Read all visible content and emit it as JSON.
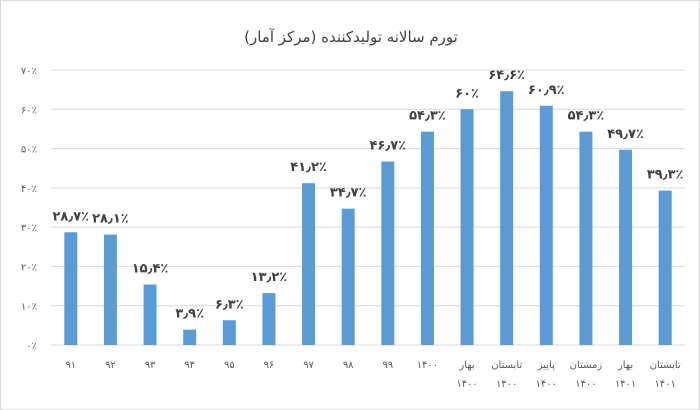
{
  "chart_data": {
    "type": "bar",
    "title": "تورم سالانه تولیدکننده (مرکز آمار)",
    "categories": [
      [
        "۹۱"
      ],
      [
        "۹۲"
      ],
      [
        "۹۳"
      ],
      [
        "۹۴"
      ],
      [
        "۹۵"
      ],
      [
        "۹۶"
      ],
      [
        "۹۷"
      ],
      [
        "۹۸"
      ],
      [
        "۹۹"
      ],
      [
        "۱۴۰۰"
      ],
      [
        "بهار",
        "۱۴۰۰"
      ],
      [
        "تابستان",
        "۱۴۰۰"
      ],
      [
        "پاییز",
        "۱۴۰۰"
      ],
      [
        "زمستان",
        "۱۴۰۰"
      ],
      [
        "بهار",
        "۱۴۰۱"
      ],
      [
        "تابستان",
        "۱۴۰۱"
      ]
    ],
    "values": [
      28.7,
      28.1,
      15.4,
      3.9,
      6.3,
      13.2,
      41.2,
      34.7,
      46.7,
      54.3,
      60,
      64.6,
      60.9,
      54.3,
      49.7,
      39.3
    ],
    "data_labels": [
      "۲۸٫۷٪",
      "۲۸٫۱٪",
      "۱۵٫۴٪",
      "۳٫۹٪",
      "۶٫۳٪",
      "۱۳٫۲٪",
      "۴۱٫۲٪",
      "۳۴٫۷٪",
      "۴۶٫۷٪",
      "۵۴٫۳٪",
      "۶۰٪",
      "۶۴٫۶٪",
      "۶۰٫۹٪",
      "۵۴٫۳٪",
      "۴۹٫۷٪",
      "۳۹٫۳٪"
    ],
    "yticks": [
      0,
      10,
      20,
      30,
      40,
      50,
      60,
      70
    ],
    "ytick_labels": [
      "۰٪",
      "۱۰٪",
      "۲۰٪",
      "۳۰٪",
      "۴۰٪",
      "۵۰٪",
      "۶۰٪",
      "۷۰٪"
    ],
    "ylim": [
      0,
      70
    ],
    "grid": true,
    "bar_color": "#5b9bd5"
  }
}
